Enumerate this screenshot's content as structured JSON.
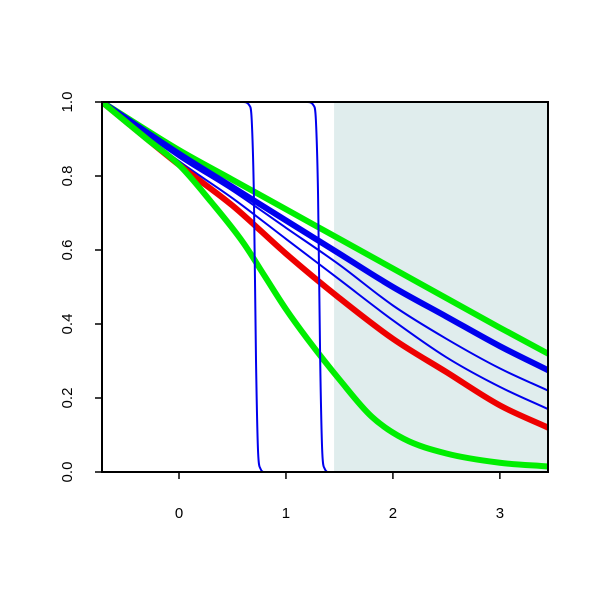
{
  "chart_data": {
    "type": "line",
    "title": "",
    "xlabel": "",
    "ylabel": "",
    "xlim": [
      -0.72,
      3.45
    ],
    "ylim": [
      0,
      1
    ],
    "grid": false,
    "legend": "none",
    "x_ticks": [
      "0",
      "1",
      "2",
      "3"
    ],
    "y_ticks": [
      "0.0",
      "0.2",
      "0.4",
      "0.6",
      "0.8",
      "1.0"
    ],
    "shaded_region": {
      "x_from": 1.45,
      "x_to": 3.45,
      "color": "#e0eded"
    },
    "series": [
      {
        "color": "#00ee00",
        "width": "thick",
        "x": [
          -0.72,
          0.0,
          0.5,
          1.0,
          1.5,
          2.0,
          2.5,
          3.0,
          3.45
        ],
        "y": [
          1.0,
          0.87,
          0.79,
          0.71,
          0.63,
          0.55,
          0.47,
          0.39,
          0.32
        ]
      },
      {
        "color": "#0000ee",
        "width": "thick",
        "x": [
          -0.72,
          0.0,
          0.5,
          1.0,
          1.5,
          2.0,
          2.5,
          3.0,
          3.45
        ],
        "y": [
          1.0,
          0.86,
          0.77,
          0.68,
          0.59,
          0.5,
          0.42,
          0.34,
          0.275
        ]
      },
      {
        "color": "#0000ee",
        "width": "thin",
        "x": [
          -0.72,
          0.0,
          0.5,
          1.0,
          1.5,
          2.0,
          2.5,
          3.0,
          3.45
        ],
        "y": [
          1.0,
          0.85,
          0.76,
          0.66,
          0.56,
          0.45,
          0.36,
          0.28,
          0.22
        ]
      },
      {
        "color": "#0000ee",
        "width": "thin",
        "x": [
          -0.72,
          0.0,
          0.5,
          1.0,
          1.5,
          2.0,
          2.5,
          3.0,
          3.45
        ],
        "y": [
          1.0,
          0.84,
          0.74,
          0.63,
          0.52,
          0.41,
          0.31,
          0.23,
          0.17
        ]
      },
      {
        "color": "#ee0000",
        "width": "thick",
        "x": [
          -0.72,
          0.0,
          0.5,
          1.0,
          1.5,
          2.0,
          2.5,
          3.0,
          3.45
        ],
        "y": [
          1.0,
          0.83,
          0.72,
          0.59,
          0.47,
          0.36,
          0.27,
          0.18,
          0.12
        ]
      },
      {
        "color": "#00ee00",
        "width": "thick",
        "x": [
          -0.72,
          -0.3,
          0.0,
          0.3,
          0.6,
          0.8,
          1.0,
          1.2,
          1.5,
          1.8,
          2.1,
          2.5,
          3.0,
          3.45
        ],
        "y": [
          1.0,
          0.9,
          0.83,
          0.73,
          0.62,
          0.53,
          0.44,
          0.36,
          0.25,
          0.15,
          0.09,
          0.05,
          0.025,
          0.015
        ]
      },
      {
        "color": "#0000ee",
        "width": "thin",
        "x": [
          -0.72,
          0.6,
          0.66,
          0.68,
          0.7,
          0.72,
          0.74,
          0.76,
          0.8,
          3.45
        ],
        "y": [
          1.0,
          1.0,
          0.99,
          0.95,
          0.75,
          0.3,
          0.05,
          0.01,
          0.0,
          0.0
        ]
      },
      {
        "color": "#0000ee",
        "width": "thin",
        "x": [
          -0.72,
          1.2,
          1.26,
          1.28,
          1.3,
          1.32,
          1.34,
          1.36,
          1.4,
          3.45
        ],
        "y": [
          1.0,
          1.0,
          0.99,
          0.95,
          0.75,
          0.3,
          0.05,
          0.01,
          0.0,
          0.0
        ]
      }
    ]
  }
}
